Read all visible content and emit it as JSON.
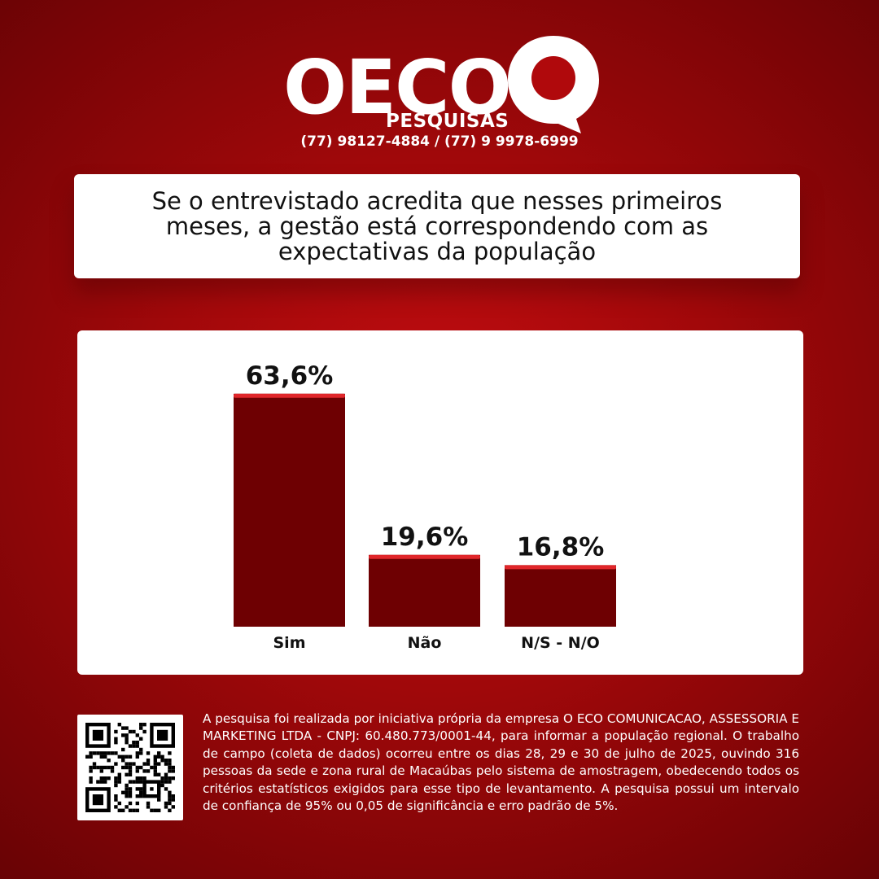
{
  "brand": {
    "name": "OECO",
    "sub": "PESQUISAS",
    "phones": "(77) 98127-4884 / (77) 9 9978-6999",
    "color": "#ffffff"
  },
  "question": {
    "text": "Se o entrevistado acredita que nesses primeiros meses, a gestão está correspondendo com as expectativas da população"
  },
  "chart_data": {
    "type": "bar",
    "title": "",
    "xlabel": "",
    "ylabel": "",
    "ylim": [
      0,
      70
    ],
    "grid": false,
    "legend": "none",
    "categories": [
      "Sim",
      "Não",
      "N/S - N/O"
    ],
    "values": [
      63.6,
      19.6,
      16.8
    ],
    "value_labels": [
      "63,6%",
      "19,6%",
      "16,8%"
    ],
    "bar_color": "#6e0002",
    "bar_top_color": "#e0262a"
  },
  "footer": {
    "qr_icon": "qr-code-icon",
    "disclaimer": "A pesquisa foi realizada por iniciativa própria da empresa O ECO COMUNICACAO, ASSESSORIA E MARKETING LTDA - CNPJ: 60.480.773/0001-44, para informar a população regional. O trabalho de campo (coleta de dados) ocorreu entre os dias 28, 29 e 30 de julho de 2025, ouvindo 316 pessoas da sede e zona rural de Macaúbas pelo sistema de amostragem, obedecendo todos os critérios estatísticos exigidos para esse tipo de levantamento. A pesquisa possui um intervalo de confiança de 95% ou 0,05 de significância e erro padrão de 5%."
  }
}
